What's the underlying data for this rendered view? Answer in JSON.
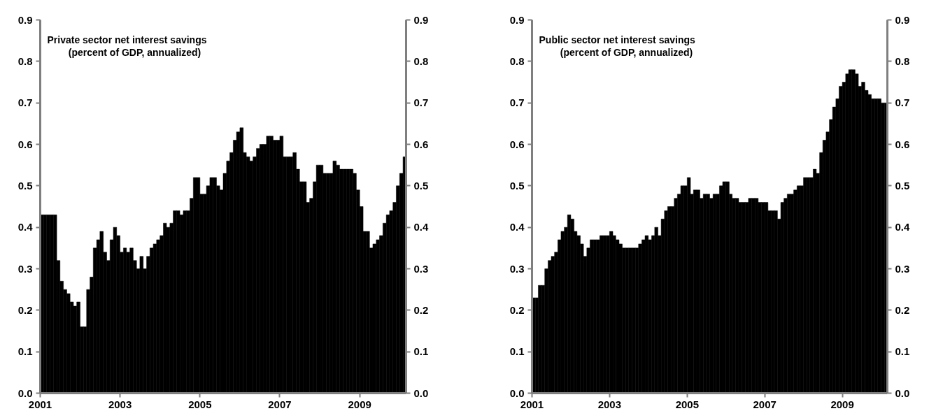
{
  "chart_data": [
    {
      "type": "bar",
      "title": "Private sector net interest savings",
      "subtitle": "(percent of GDP, annualized)",
      "color": "#000000",
      "x": [
        "2001-01",
        "2001-02",
        "2001-03",
        "2001-04",
        "2001-05",
        "2001-06",
        "2001-07",
        "2001-08",
        "2001-09",
        "2001-10",
        "2001-11",
        "2001-12",
        "2002-01",
        "2002-02",
        "2002-03",
        "2002-04",
        "2002-05",
        "2002-06",
        "2002-07",
        "2002-08",
        "2002-09",
        "2002-10",
        "2002-11",
        "2002-12",
        "2003-01",
        "2003-02",
        "2003-03",
        "2003-04",
        "2003-05",
        "2003-06",
        "2003-07",
        "2003-08",
        "2003-09",
        "2003-10",
        "2003-11",
        "2003-12",
        "2004-01",
        "2004-02",
        "2004-03",
        "2004-04",
        "2004-05",
        "2004-06",
        "2004-07",
        "2004-08",
        "2004-09",
        "2004-10",
        "2004-11",
        "2004-12",
        "2005-01",
        "2005-02",
        "2005-03",
        "2005-04",
        "2005-05",
        "2005-06",
        "2005-07",
        "2005-08",
        "2005-09",
        "2005-10",
        "2005-11",
        "2005-12",
        "2006-01",
        "2006-02",
        "2006-03",
        "2006-04",
        "2006-05",
        "2006-06",
        "2006-07",
        "2006-08",
        "2006-09",
        "2006-10",
        "2006-11",
        "2006-12",
        "2007-01",
        "2007-02",
        "2007-03",
        "2007-04",
        "2007-05",
        "2007-06",
        "2007-07",
        "2007-08",
        "2007-09",
        "2007-10",
        "2007-11",
        "2007-12",
        "2008-01",
        "2008-02",
        "2008-03",
        "2008-04",
        "2008-05",
        "2008-06",
        "2008-07",
        "2008-08",
        "2008-09",
        "2008-10",
        "2008-11",
        "2008-12",
        "2009-01",
        "2009-02",
        "2009-03",
        "2009-04",
        "2009-05",
        "2009-06",
        "2009-07",
        "2009-08",
        "2009-09",
        "2009-10",
        "2009-11",
        "2009-12",
        "2010-01",
        "2010-02"
      ],
      "values": [
        0.43,
        0.43,
        0.43,
        0.43,
        0.43,
        0.32,
        0.27,
        0.25,
        0.24,
        0.22,
        0.21,
        0.22,
        0.16,
        0.16,
        0.25,
        0.28,
        0.35,
        0.37,
        0.39,
        0.34,
        0.32,
        0.37,
        0.4,
        0.38,
        0.34,
        0.35,
        0.34,
        0.35,
        0.32,
        0.3,
        0.33,
        0.3,
        0.33,
        0.35,
        0.36,
        0.37,
        0.38,
        0.41,
        0.4,
        0.41,
        0.44,
        0.44,
        0.43,
        0.44,
        0.44,
        0.47,
        0.52,
        0.52,
        0.48,
        0.48,
        0.5,
        0.52,
        0.52,
        0.5,
        0.49,
        0.53,
        0.56,
        0.58,
        0.61,
        0.63,
        0.64,
        0.58,
        0.57,
        0.56,
        0.57,
        0.59,
        0.6,
        0.6,
        0.62,
        0.62,
        0.61,
        0.61,
        0.62,
        0.57,
        0.57,
        0.57,
        0.58,
        0.54,
        0.51,
        0.51,
        0.46,
        0.47,
        0.51,
        0.55,
        0.55,
        0.53,
        0.53,
        0.53,
        0.56,
        0.55,
        0.54,
        0.54,
        0.54,
        0.54,
        0.53,
        0.49,
        0.45,
        0.39,
        0.39,
        0.35,
        0.36,
        0.37,
        0.38,
        0.41,
        0.43,
        0.44,
        0.46,
        0.5,
        0.53,
        0.57
      ],
      "xlim": [
        "2001-01",
        "2010-03"
      ],
      "xticks": [
        "2001",
        "2003",
        "2005",
        "2007",
        "2009"
      ],
      "ylim": [
        0,
        0.9
      ],
      "yticks": [
        {
          "value": 0,
          "label": "0.0"
        },
        {
          "value": 0.1,
          "label": "0.1"
        },
        {
          "value": 0.2,
          "label": "0.2"
        },
        {
          "value": 0.3,
          "label": "0.3"
        },
        {
          "value": 0.4,
          "label": "0.4"
        },
        {
          "value": 0.5,
          "label": "0.5"
        },
        {
          "value": 0.6,
          "label": "0.6"
        },
        {
          "value": 0.7,
          "label": "0.7"
        },
        {
          "value": 0.8,
          "label": "0.8"
        },
        {
          "value": 0.9,
          "label": "0.9"
        }
      ],
      "y2lim": [
        0,
        0.9
      ],
      "y2ticks": [
        {
          "value": 0,
          "label": "0.0"
        },
        {
          "value": 0.1,
          "label": "0.1"
        },
        {
          "value": 0.2,
          "label": "0.2"
        },
        {
          "value": 0.3,
          "label": "0.3"
        },
        {
          "value": 0.4,
          "label": "0.4"
        },
        {
          "value": 0.5,
          "label": "0.5"
        },
        {
          "value": 0.6,
          "label": "0.6"
        },
        {
          "value": 0.7,
          "label": "0.7"
        },
        {
          "value": 0.8,
          "label": "0.8"
        },
        {
          "value": 0.9,
          "label": "0.9"
        }
      ]
    },
    {
      "type": "bar",
      "title": "Public sector net interest savings",
      "subtitle": "(percent of GDP, annualized)",
      "color": "#000000",
      "x": [
        "2001-01",
        "2001-02",
        "2001-03",
        "2001-04",
        "2001-05",
        "2001-06",
        "2001-07",
        "2001-08",
        "2001-09",
        "2001-10",
        "2001-11",
        "2001-12",
        "2002-01",
        "2002-02",
        "2002-03",
        "2002-04",
        "2002-05",
        "2002-06",
        "2002-07",
        "2002-08",
        "2002-09",
        "2002-10",
        "2002-11",
        "2002-12",
        "2003-01",
        "2003-02",
        "2003-03",
        "2003-04",
        "2003-05",
        "2003-06",
        "2003-07",
        "2003-08",
        "2003-09",
        "2003-10",
        "2003-11",
        "2003-12",
        "2004-01",
        "2004-02",
        "2004-03",
        "2004-04",
        "2004-05",
        "2004-06",
        "2004-07",
        "2004-08",
        "2004-09",
        "2004-10",
        "2004-11",
        "2004-12",
        "2005-01",
        "2005-02",
        "2005-03",
        "2005-04",
        "2005-05",
        "2005-06",
        "2005-07",
        "2005-08",
        "2005-09",
        "2005-10",
        "2005-11",
        "2005-12",
        "2006-01",
        "2006-02",
        "2006-03",
        "2006-04",
        "2006-05",
        "2006-06",
        "2006-07",
        "2006-08",
        "2006-09",
        "2006-10",
        "2006-11",
        "2006-12",
        "2007-01",
        "2007-02",
        "2007-03",
        "2007-04",
        "2007-05",
        "2007-06",
        "2007-07",
        "2007-08",
        "2007-09",
        "2007-10",
        "2007-11",
        "2007-12",
        "2008-01",
        "2008-02",
        "2008-03",
        "2008-04",
        "2008-05",
        "2008-06",
        "2008-07",
        "2008-08",
        "2008-09",
        "2008-10",
        "2008-11",
        "2008-12",
        "2009-01",
        "2009-02",
        "2009-03",
        "2009-04",
        "2009-05",
        "2009-06",
        "2009-07",
        "2009-08",
        "2009-09",
        "2009-10",
        "2009-11",
        "2009-12",
        "2010-01",
        "2010-02"
      ],
      "values": [
        0.23,
        0.23,
        0.26,
        0.26,
        0.3,
        0.32,
        0.33,
        0.34,
        0.37,
        0.39,
        0.4,
        0.43,
        0.42,
        0.39,
        0.38,
        0.36,
        0.33,
        0.35,
        0.37,
        0.37,
        0.37,
        0.38,
        0.38,
        0.38,
        0.39,
        0.38,
        0.37,
        0.36,
        0.35,
        0.35,
        0.35,
        0.35,
        0.35,
        0.36,
        0.37,
        0.38,
        0.37,
        0.38,
        0.4,
        0.38,
        0.42,
        0.44,
        0.45,
        0.45,
        0.47,
        0.48,
        0.5,
        0.5,
        0.52,
        0.48,
        0.49,
        0.49,
        0.47,
        0.48,
        0.48,
        0.47,
        0.48,
        0.48,
        0.5,
        0.51,
        0.51,
        0.48,
        0.47,
        0.47,
        0.46,
        0.46,
        0.46,
        0.47,
        0.47,
        0.47,
        0.46,
        0.46,
        0.46,
        0.44,
        0.44,
        0.44,
        0.42,
        0.46,
        0.47,
        0.48,
        0.48,
        0.49,
        0.5,
        0.5,
        0.52,
        0.52,
        0.52,
        0.54,
        0.53,
        0.58,
        0.61,
        0.63,
        0.66,
        0.69,
        0.71,
        0.74,
        0.75,
        0.77,
        0.78,
        0.78,
        0.77,
        0.74,
        0.75,
        0.73,
        0.72,
        0.71,
        0.71,
        0.71,
        0.7,
        0.7
      ],
      "xlim": [
        "2001-01",
        "2010-03"
      ],
      "xticks": [
        "2001",
        "2003",
        "2005",
        "2007",
        "2009"
      ],
      "ylim": [
        0,
        0.9
      ],
      "yticks": [
        {
          "value": 0,
          "label": "0.0"
        },
        {
          "value": 0.1,
          "label": "0.1"
        },
        {
          "value": 0.2,
          "label": "0.2"
        },
        {
          "value": 0.3,
          "label": "0.3"
        },
        {
          "value": 0.4,
          "label": "0.4"
        },
        {
          "value": 0.5,
          "label": "0.5"
        },
        {
          "value": 0.6,
          "label": "0.6"
        },
        {
          "value": 0.7,
          "label": "0.7"
        },
        {
          "value": 0.8,
          "label": "0.8"
        },
        {
          "value": 0.9,
          "label": "0.9"
        }
      ],
      "y2lim": [
        0,
        0.9
      ],
      "y2ticks": [
        {
          "value": 0,
          "label": "0.0"
        },
        {
          "value": 0.1,
          "label": "0.1"
        },
        {
          "value": 0.2,
          "label": "0.2"
        },
        {
          "value": 0.3,
          "label": "0.3"
        },
        {
          "value": 0.4,
          "label": "0.4"
        },
        {
          "value": 0.5,
          "label": "0.5"
        },
        {
          "value": 0.6,
          "label": "0.6"
        },
        {
          "value": 0.7,
          "label": "0.7"
        },
        {
          "value": 0.8,
          "label": "0.8"
        },
        {
          "value": 0.9,
          "label": "0.9"
        }
      ]
    }
  ]
}
